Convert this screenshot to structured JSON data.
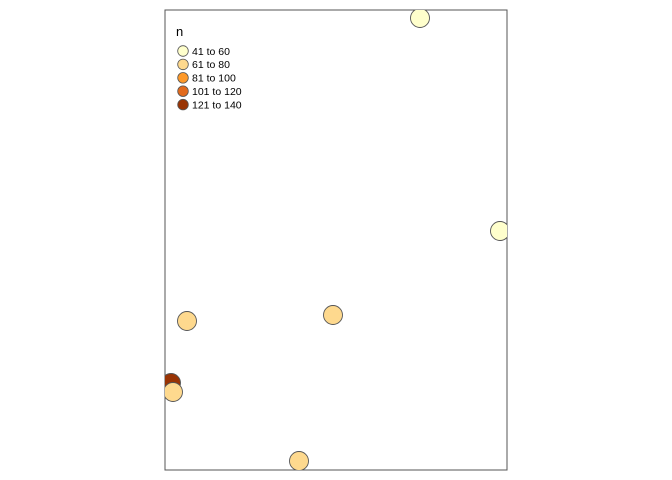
{
  "legend": {
    "title": "n",
    "entries": [
      {
        "label": "41 to 60",
        "color": "#FFFFCC"
      },
      {
        "label": "61 to 80",
        "color": "#FED98E"
      },
      {
        "label": "81 to 100",
        "color": "#FE9929"
      },
      {
        "label": "101 to 120",
        "color": "#E26A1C"
      },
      {
        "label": "121 to 140",
        "color": "#993404"
      }
    ]
  },
  "colors": {
    "frame": "#555555",
    "marker_stroke": "#555555",
    "background": "#FFFFFF"
  },
  "points": [
    {
      "class": "41 to 60"
    },
    {
      "class": "41 to 60"
    },
    {
      "class": "61 to 80"
    },
    {
      "class": "61 to 80"
    },
    {
      "class": "121 to 140"
    },
    {
      "class": "61 to 80"
    },
    {
      "class": "61 to 80"
    }
  ]
}
